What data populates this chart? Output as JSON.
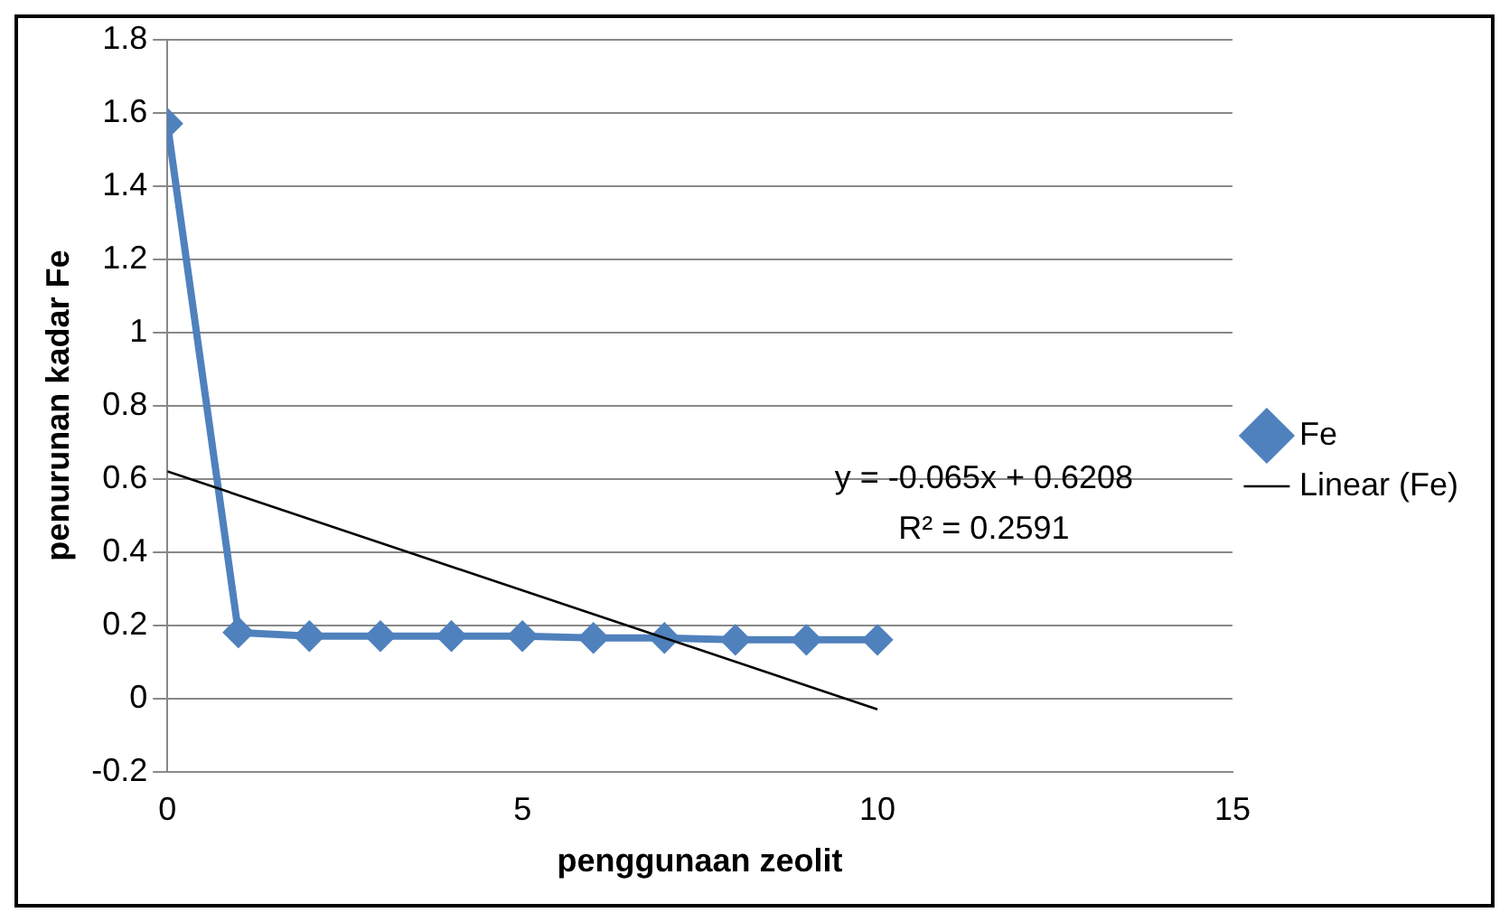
{
  "chart_data": {
    "type": "line",
    "xlabel": "penggunaan zeolit",
    "ylabel": "penurunan kadar Fe",
    "x": [
      0,
      1,
      2,
      3,
      4,
      5,
      6,
      7,
      8,
      9,
      10
    ],
    "series": [
      {
        "name": "Fe",
        "color": "#4f81bd",
        "values": [
          1.57,
          0.18,
          0.17,
          0.17,
          0.17,
          0.17,
          0.165,
          0.165,
          0.16,
          0.16,
          0.16
        ],
        "marker": "diamond"
      },
      {
        "name": "Linear (Fe)",
        "color": "#000000",
        "type": "line",
        "x": [
          0,
          10
        ],
        "values": [
          0.62,
          -0.03
        ],
        "marker": "none"
      }
    ],
    "annotations": [
      "y = -0.065x + 0.6208",
      "R² = 0.2591"
    ],
    "xlim": [
      0,
      15
    ],
    "xticks": [
      0,
      5,
      10,
      15
    ],
    "ylim": [
      -0.2,
      1.8
    ],
    "yticks": [
      -0.2,
      0,
      0.2,
      0.4,
      0.6,
      0.8,
      1,
      1.2,
      1.4,
      1.6,
      1.8
    ],
    "grid": "y",
    "legend": "right"
  }
}
